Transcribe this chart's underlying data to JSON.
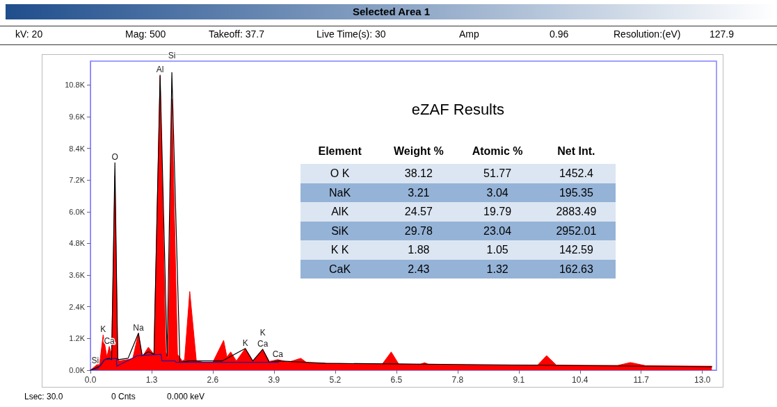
{
  "chart_data": [
    {
      "type": "line",
      "title": "Selected Area 1",
      "xlim": [
        0,
        13.3
      ],
      "ylim": [
        0,
        11700
      ],
      "xticks": [
        {
          "value": 0,
          "label": "0.0"
        },
        1.3,
        2.6,
        3.9,
        5.2,
        6.5,
        7.8,
        9.1,
        10.4,
        11.7,
        {
          "value": 13,
          "label": "13.0"
        }
      ],
      "yticks": [
        {
          "value": 0,
          "label": "0.0K"
        },
        {
          "value": 1200,
          "label": "1.2K"
        },
        {
          "value": 2400,
          "label": "2.4K"
        },
        {
          "value": 3600,
          "label": "3.6K"
        },
        {
          "value": 4800,
          "label": "4.8K"
        },
        {
          "value": 6000,
          "label": "6.0K"
        },
        {
          "value": 7200,
          "label": "7.2K"
        },
        {
          "value": 8400,
          "label": "8.4K"
        },
        {
          "value": 9600,
          "label": "9.6K"
        },
        {
          "value": 10800,
          "label": "10.8K"
        }
      ],
      "grid": false,
      "marker": "none",
      "line_style": "solid",
      "series": [
        {
          "type": "area",
          "color": "#ff0000",
          "x": [
            0,
            0.1,
            0.2,
            0.27,
            0.35,
            0.4,
            0.45,
            0.52,
            0.58,
            0.6,
            0.8,
            0.9,
            1.02,
            1.1,
            1.23,
            1.35,
            1.48,
            1.6,
            1.65,
            1.73,
            1.85,
            1.95,
            2.0,
            2.11,
            2.25,
            2.4,
            2.6,
            2.83,
            2.9,
            2.98,
            3.1,
            3.29,
            3.45,
            3.66,
            3.8,
            3.98,
            4.2,
            4.47,
            4.6,
            5,
            6,
            6.2,
            6.39,
            6.55,
            7,
            7.1,
            7.2,
            8,
            9,
            9.5,
            9.69,
            9.9,
            11.2,
            11.47,
            11.8,
            13.2
          ],
          "values": [
            0,
            150,
            300,
            1340,
            500,
            900,
            600,
            7370,
            500,
            350,
            400,
            450,
            1400,
            500,
            870,
            600,
            11140,
            700,
            400,
            10270,
            600,
            350,
            400,
            2980,
            350,
            300,
            300,
            1130,
            500,
            690,
            350,
            820,
            350,
            790,
            330,
            400,
            300,
            450,
            280,
            260,
            240,
            230,
            690,
            230,
            220,
            280,
            210,
            200,
            190,
            190,
            550,
            190,
            180,
            290,
            170,
            150
          ]
        },
        {
          "type": "line",
          "color": "#000000",
          "x": [
            0,
            0.2,
            0.3,
            0.4,
            0.45,
            0.52,
            0.58,
            0.8,
            1.02,
            1.1,
            1.23,
            1.35,
            1.48,
            1.63,
            1.73,
            1.9,
            2.1,
            2.8,
            3.29,
            3.45,
            3.66,
            3.8,
            4.0,
            5,
            13.2
          ],
          "values": [
            0,
            150,
            400,
            450,
            400,
            7850,
            400,
            450,
            1400,
            550,
            700,
            600,
            11170,
            530,
            11270,
            300,
            350,
            350,
            820,
            350,
            790,
            300,
            350,
            260,
            130
          ]
        },
        {
          "type": "line",
          "color": "#1a1aa0",
          "x": [
            0,
            0.15,
            0.3,
            0.55,
            0.56,
            1.0,
            1.5,
            1.52,
            1.8,
            1.82,
            4.0
          ],
          "values": [
            0,
            50,
            400,
            450,
            150,
            550,
            600,
            350,
            350,
            300,
            300
          ]
        }
      ],
      "annotations": [
        "kV: 20",
        "Mag: 500",
        "Takeoff: 37.7",
        "Live Time(s): 30",
        "Amp",
        "0.96",
        "Resolution:(eV)",
        "127.9",
        "Lsec: 30.0",
        "0 Cnts",
        "0.000 keV",
        {
          "text": "O",
          "x": 0.52,
          "y": 7850
        },
        {
          "text": "Al",
          "x": 1.48,
          "y": 11170
        },
        {
          "text": "Si",
          "x": 1.73,
          "y": 11270
        },
        {
          "text": "Na",
          "x": 1.02,
          "y": 1400
        },
        {
          "text": "K",
          "x": 0.27,
          "y": 1340
        },
        {
          "text": "Ca",
          "x": 0.4,
          "y": 900
        },
        {
          "text": "Si",
          "x": 0.1,
          "y": 150
        },
        {
          "text": "Ca",
          "x": 3.66,
          "y": 790
        },
        {
          "text": "K",
          "x": 3.29,
          "y": 820
        },
        {
          "text": "K",
          "x": 3.66,
          "y": 790
        },
        {
          "text": "Ca",
          "x": 3.98,
          "y": 400
        }
      ]
    },
    {
      "type": "other",
      "title": "eZAF Results",
      "annotations": [
        "Element",
        "Weight %",
        "Atomic %",
        "Net Int.",
        "O K",
        "38.12",
        "51.77",
        "1452.4",
        "NaK",
        "3.21",
        "3.04",
        "195.35",
        "AlK",
        "24.57",
        "19.79",
        "2883.49",
        "SiK",
        "29.78",
        "23.04",
        "2952.01",
        "K K",
        "1.88",
        "1.05",
        "142.59",
        "CaK",
        "2.43",
        "1.32",
        "162.63"
      ]
    }
  ]
}
